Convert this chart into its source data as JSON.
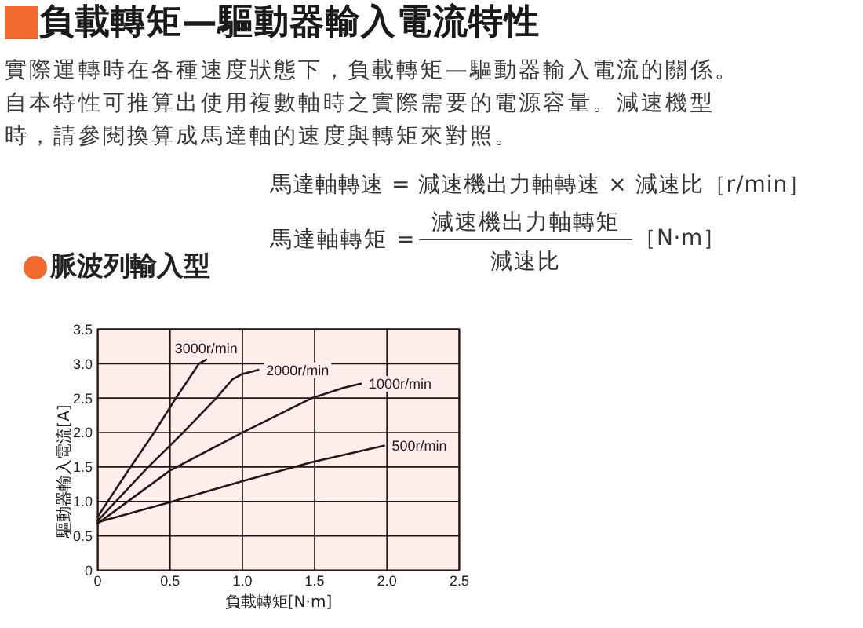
{
  "chart_data": {
    "type": "line",
    "title": "負載轉矩—驅動器輸入電流特性",
    "subtitle": "脈波列輸入型",
    "annotations": [
      "實際運轉時在各種速度狀態下，負載轉矩—驅動器輸入電流的關係。自本特性可推算出使用複數軸時之實際需要的電源容量。減速機型時，請參閱換算成馬達軸的速度與轉矩來對照。",
      "馬達軸轉速 = 減速機出力軸轉速 × 減速比［r/min］",
      "馬達軸轉矩 =",
      "減速機出力軸轉矩",
      "減速比",
      "［N·m］"
    ],
    "xlabel": "負載轉矩[N·m]",
    "ylabel": "驅動器輸入電流[A]",
    "xlim": [
      0,
      2.5
    ],
    "ylim": [
      0,
      3.5
    ],
    "xticks": [
      0,
      0.5,
      {
        "value": 1,
        "label": "1.0"
      },
      1.5,
      {
        "value": 2,
        "label": "2.0"
      },
      2.5
    ],
    "yticks": [
      0,
      0.5,
      {
        "value": 1,
        "label": "1.0"
      },
      1.5,
      {
        "value": 2,
        "label": "2.0"
      },
      2.5,
      {
        "value": 3,
        "label": "3.0"
      },
      3.5
    ],
    "grid": true,
    "series": [
      {
        "name": "3000r/min",
        "color": "#231815",
        "x": [
          0,
          0.22,
          0.39,
          0.54,
          0.7,
          0.75
        ],
        "values": [
          0.78,
          1.48,
          2.0,
          2.5,
          3.0,
          3.06
        ]
      },
      {
        "name": "2000r/min",
        "color": "#231815",
        "x": [
          0,
          0.34,
          0.59,
          0.82,
          0.93,
          1.0,
          1.11
        ],
        "values": [
          0.72,
          1.48,
          2.0,
          2.5,
          2.77,
          2.85,
          2.91
        ]
      },
      {
        "name": "1000r/min",
        "color": "#231815",
        "x": [
          0,
          0.5,
          1.0,
          1.48,
          1.7,
          1.82
        ],
        "values": [
          0.68,
          1.45,
          2.0,
          2.5,
          2.65,
          2.71
        ]
      },
      {
        "name": "500r/min",
        "color": "#231815",
        "x": [
          0,
          0.5,
          0.99,
          1.48,
          1.98
        ],
        "values": [
          0.7,
          0.99,
          1.29,
          1.57,
          1.81
        ]
      }
    ]
  }
}
